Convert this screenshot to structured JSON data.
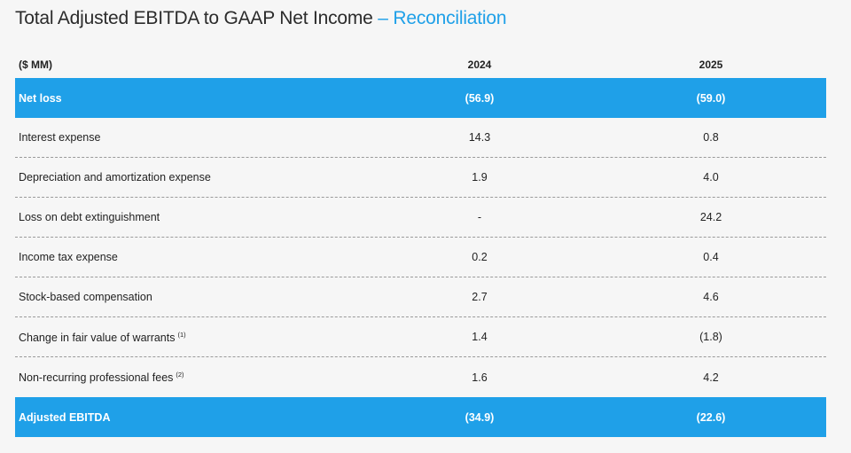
{
  "header": {
    "title": "Total Adjusted EBITDA to GAAP Net Income",
    "title_accent": "– Reconciliation"
  },
  "table": {
    "columns": [
      "($ MM)",
      "2024",
      "2025"
    ],
    "rows": [
      {
        "label": "Net loss",
        "values": [
          "(56.9)",
          "(59.0)"
        ]
      },
      {
        "label": "Interest expense",
        "values": [
          "14.3",
          "0.8"
        ]
      },
      {
        "label": "Depreciation and amortization expense",
        "values": [
          "1.9",
          "4.0"
        ]
      },
      {
        "label": "Loss on debt extinguishment",
        "values": [
          "-",
          "24.2"
        ]
      },
      {
        "label": "Income tax expense",
        "values": [
          "0.2",
          "0.4"
        ]
      },
      {
        "label": "Stock-based compensation",
        "values": [
          "2.7",
          "4.6"
        ]
      },
      {
        "label": "Change in fair value of warrants",
        "note": "(1)",
        "values": [
          "1.4",
          "(1.8)"
        ]
      },
      {
        "label": "Non-recurring professional fees",
        "note": "(2)",
        "values": [
          "1.6",
          "4.2"
        ]
      },
      {
        "label": "Adjusted EBITDA",
        "values": [
          "(34.9)",
          "(22.6)"
        ]
      }
    ]
  }
}
